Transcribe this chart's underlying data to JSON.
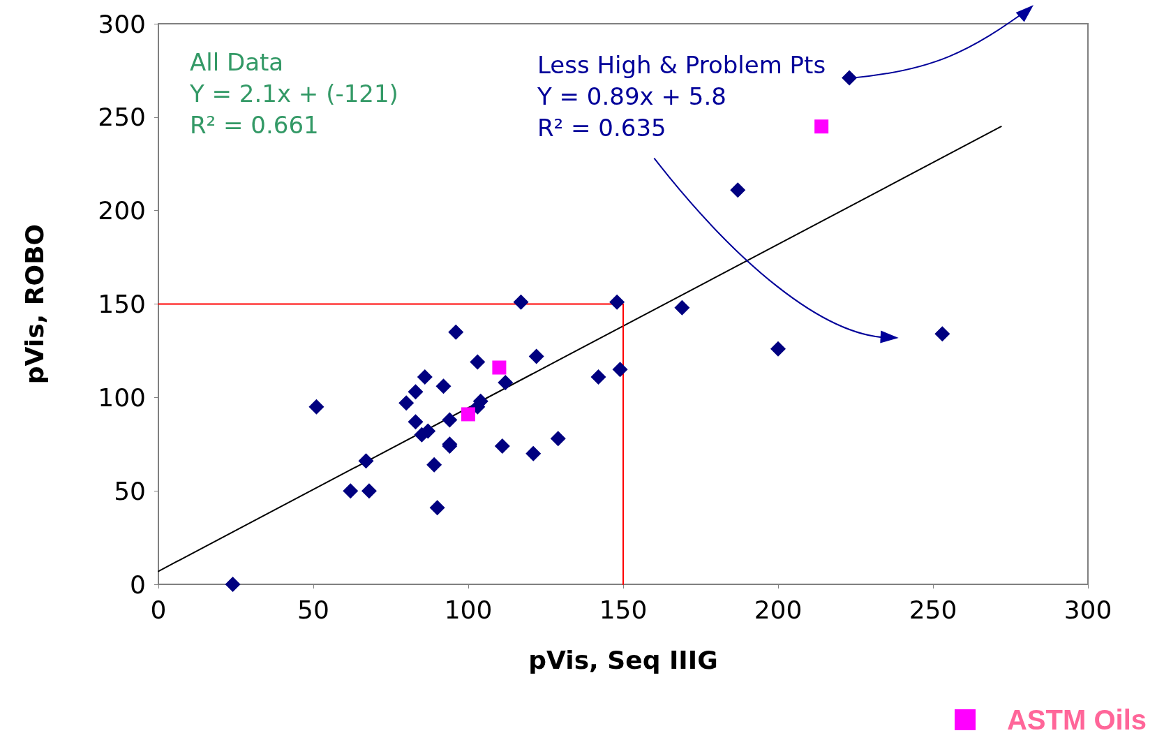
{
  "chart_data": {
    "type": "scatter",
    "xlabel": "pVis, Seq IIIG",
    "ylabel": "pVis, ROBO",
    "xlim": [
      0,
      300
    ],
    "ylim": [
      0,
      300
    ],
    "xticks": [
      0,
      50,
      100,
      150,
      200,
      250,
      300
    ],
    "yticks": [
      0,
      50,
      100,
      150,
      200,
      250,
      300
    ],
    "grid": false,
    "legend": "bottom right",
    "annotations": [
      "All Data\nY = 2.1x + (-121)\nR² = 0.661",
      "Less High & Problem Pts\nY = 0.89x + 5.8\nR² = 0.635"
    ],
    "series": [
      {
        "marker": "diamond",
        "color": "#000080",
        "x": [
          24,
          51,
          62,
          68,
          67,
          80,
          83,
          86,
          83,
          85,
          87,
          89,
          90,
          92,
          94,
          94,
          94,
          96,
          103,
          103,
          104,
          112,
          111,
          117,
          121,
          122,
          129,
          142,
          148,
          149,
          169,
          187,
          200,
          223,
          253
        ],
        "values": [
          0,
          95,
          50,
          50,
          66,
          97,
          103,
          111,
          87,
          80,
          82,
          64,
          41,
          106,
          88,
          75,
          74,
          135,
          119,
          95,
          98,
          108,
          74,
          151,
          70,
          122,
          78,
          111,
          151,
          115,
          148,
          211,
          126,
          271,
          134
        ]
      },
      {
        "marker": "square",
        "name": "ASTM Oils",
        "color": "#ff00ff",
        "x": [
          110,
          100,
          214
        ],
        "values": [
          116,
          91,
          245
        ]
      },
      {
        "type": "line",
        "marker": "none",
        "color": "#000000",
        "line_style": "solid",
        "x": [
          0,
          272
        ],
        "values": [
          7,
          245
        ]
      },
      {
        "type": "line",
        "marker": "none",
        "color": "#ff0000",
        "line_style": "solid",
        "x": [
          0,
          150,
          150
        ],
        "values": [
          150,
          150,
          0
        ]
      }
    ]
  }
}
